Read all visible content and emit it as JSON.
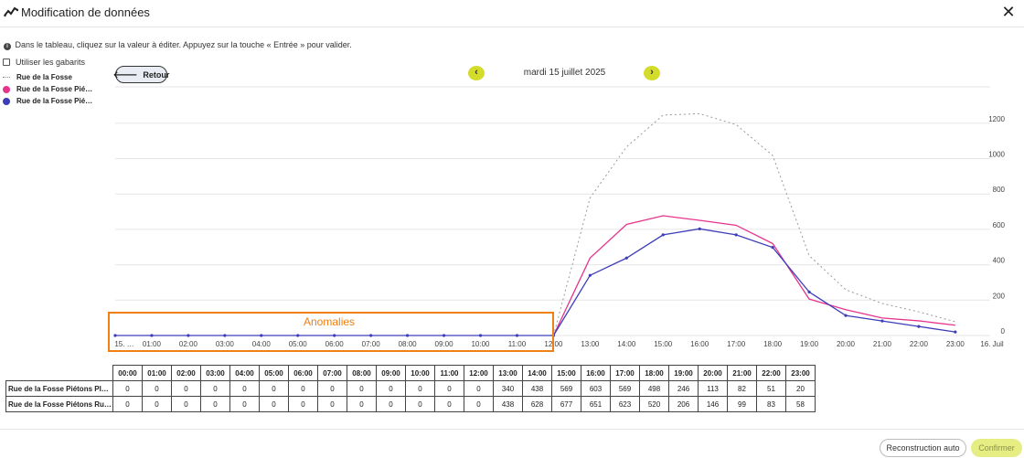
{
  "header": {
    "title": "Modification de données",
    "logo_icon": "chart-line-icon",
    "close_icon": "close-icon"
  },
  "info": {
    "text": "Dans le tableau, cliquez sur la valeur à éditer. Appuyez sur la touche « Entrée » pour valider."
  },
  "templates": {
    "label": "Utiliser les gabarits",
    "checked": false
  },
  "legend": [
    {
      "label": "Rue de la Fosse",
      "style": "dotted",
      "color": "#999999"
    },
    {
      "label": "Rue de la Fosse Pié…",
      "style": "dot",
      "color": "#e6348d"
    },
    {
      "label": "Rue de la Fosse Pié…",
      "style": "dot",
      "color": "#3d3db8"
    }
  ],
  "nav": {
    "back_label": "Retour",
    "date": "mardi 15 juillet 2025",
    "prev_icon": "chevron-left-icon",
    "next_icon": "chevron-right-icon"
  },
  "annotation": {
    "label": "Anomalies",
    "color": "#f07f14"
  },
  "chart_data": {
    "type": "line",
    "x_tick_labels": [
      "15. …",
      "01:00",
      "02:00",
      "03:00",
      "04:00",
      "05:00",
      "06:00",
      "07:00",
      "08:00",
      "09:00",
      "10:00",
      "11:00",
      "12:00",
      "13:00",
      "14:00",
      "15:00",
      "16:00",
      "17:00",
      "18:00",
      "19:00",
      "20:00",
      "21:00",
      "22:00",
      "23:00",
      "16. Juil"
    ],
    "x": [
      0,
      1,
      2,
      3,
      4,
      5,
      6,
      7,
      8,
      9,
      10,
      11,
      12,
      13,
      14,
      15,
      16,
      17,
      18,
      19,
      20,
      21,
      22,
      23
    ],
    "ylim": [
      0,
      1400
    ],
    "y_ticks": [
      0,
      200,
      400,
      600,
      800,
      1000,
      1200
    ],
    "grid": true,
    "series": [
      {
        "name": "Rue de la Fosse",
        "style": "dotted",
        "color": "#999999",
        "values": [
          null,
          null,
          null,
          null,
          null,
          null,
          null,
          null,
          null,
          null,
          null,
          null,
          0,
          778,
          1066,
          1246,
          1254,
          1192,
          1018,
          452,
          259,
          181,
          134,
          78
        ]
      },
      {
        "name": "Rue de la Fosse Pié…",
        "style": "solid",
        "color": "#e6348d",
        "markers": false,
        "values": [
          null,
          null,
          null,
          null,
          null,
          null,
          null,
          null,
          null,
          null,
          null,
          null,
          0,
          438,
          628,
          677,
          651,
          623,
          520,
          206,
          146,
          99,
          83,
          58
        ]
      },
      {
        "name": "Rue de la Fosse Pié…",
        "style": "solid",
        "color": "#3d3db8",
        "markers": true,
        "values": [
          0,
          0,
          0,
          0,
          0,
          0,
          0,
          0,
          0,
          0,
          0,
          0,
          0,
          340,
          438,
          569,
          603,
          569,
          498,
          246,
          113,
          82,
          51,
          20
        ]
      }
    ]
  },
  "table": {
    "columns": [
      "00:00",
      "01:00",
      "02:00",
      "03:00",
      "04:00",
      "05:00",
      "06:00",
      "07:00",
      "08:00",
      "09:00",
      "10:00",
      "11:00",
      "12:00",
      "13:00",
      "14:00",
      "15:00",
      "16:00",
      "17:00",
      "18:00",
      "19:00",
      "20:00",
      "21:00",
      "22:00",
      "23:00"
    ],
    "rows": [
      {
        "label": "Rue de la Fosse Piétons Pl…",
        "values": [
          "0",
          "0",
          "0",
          "0",
          "0",
          "0",
          "0",
          "0",
          "0",
          "0",
          "0",
          "0",
          "0",
          "340",
          "438",
          "569",
          "603",
          "569",
          "498",
          "246",
          "113",
          "82",
          "51",
          "20"
        ]
      },
      {
        "label": "Rue de la Fosse Piétons Ru…",
        "values": [
          "0",
          "0",
          "0",
          "0",
          "0",
          "0",
          "0",
          "0",
          "0",
          "0",
          "0",
          "0",
          "0",
          "438",
          "628",
          "677",
          "651",
          "623",
          "520",
          "206",
          "146",
          "99",
          "83",
          "58"
        ]
      }
    ]
  },
  "footer": {
    "auto_label": "Reconstruction auto",
    "confirm_label": "Confirmer"
  }
}
